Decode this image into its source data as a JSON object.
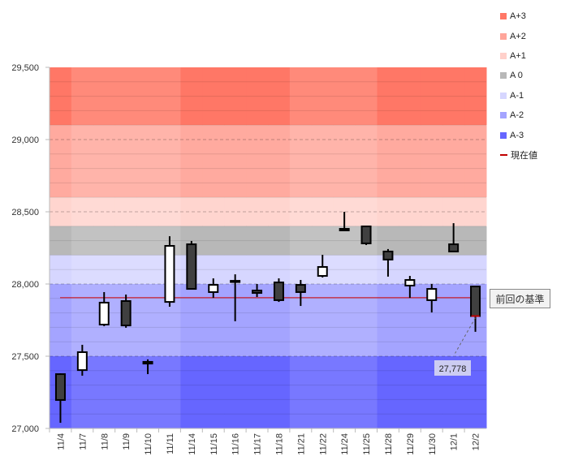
{
  "chart_data": {
    "type": "candlestick",
    "categories": [
      "11/4",
      "11/7",
      "11/8",
      "11/9",
      "11/10",
      "11/11",
      "11/14",
      "11/15",
      "11/16",
      "11/17",
      "11/18",
      "11/21",
      "11/22",
      "11/24",
      "11/25",
      "11/28",
      "11/29",
      "11/30",
      "12/1",
      "12/2"
    ],
    "ohlc": [
      [
        27376,
        27382,
        27039,
        27197
      ],
      [
        27404,
        27579,
        27365,
        27528
      ],
      [
        27719,
        27944,
        27708,
        27871
      ],
      [
        27882,
        27927,
        27697,
        27713
      ],
      [
        27461,
        27478,
        27376,
        27449
      ],
      [
        27876,
        28331,
        27843,
        28264
      ],
      [
        28275,
        28298,
        27966,
        27966
      ],
      [
        27944,
        28039,
        27904,
        27994
      ],
      [
        28022,
        28067,
        27742,
        28017
      ],
      [
        27955,
        28000,
        27910,
        27938
      ],
      [
        28011,
        28039,
        27876,
        27888
      ],
      [
        27994,
        28028,
        27848,
        27944
      ],
      [
        28056,
        28202,
        28045,
        28118
      ],
      [
        28382,
        28500,
        28371,
        28371
      ],
      [
        28399,
        28399,
        28270,
        28281
      ],
      [
        28225,
        28242,
        28051,
        28169
      ],
      [
        27989,
        28056,
        27904,
        28028
      ],
      [
        27888,
        28000,
        27803,
        27966
      ],
      [
        28275,
        28421,
        28225,
        28225
      ],
      [
        27983,
        27983,
        27669,
        27778
      ]
    ],
    "ylim": [
      27000,
      29500
    ],
    "yticks": [
      27000,
      27500,
      28000,
      28500,
      29000,
      29500
    ],
    "ytick_labels": [
      "27,000",
      "27,500",
      "28,000",
      "28,500",
      "29,000",
      "29,500"
    ],
    "bands": [
      {
        "name": "A+3",
        "from": 29100,
        "to": 29500,
        "color": "#ff7766",
        "color_alt": "#ff8a7a"
      },
      {
        "name": "A+2",
        "from": 28600,
        "to": 29100,
        "color": "#ffaa9f",
        "color_alt": "#ffb4aa"
      },
      {
        "name": "A+1",
        "from": 28400,
        "to": 28600,
        "color": "#ffd5cf",
        "color_alt": "#ffdad5"
      },
      {
        "name": "A 0",
        "from": 28200,
        "to": 28400,
        "color": "#b8b8b8",
        "color_alt": "#c2c2c2"
      },
      {
        "name": "A-1",
        "from": 28000,
        "to": 28200,
        "color": "#d6d6ff",
        "color_alt": "#dcdcff"
      },
      {
        "name": "A-2",
        "from": 27500,
        "to": 28000,
        "color": "#a4a4ff",
        "color_alt": "#b0b0ff"
      },
      {
        "name": "A-3",
        "from": 27000,
        "to": 27500,
        "color": "#6666ff",
        "color_alt": "#7878ff"
      }
    ],
    "week_alt_columns": [
      1,
      2,
      3,
      4,
      5,
      11,
      12,
      13,
      14
    ],
    "reference_line": {
      "label": "前回の基準",
      "value": 27905,
      "color": "#d00000"
    },
    "current_value": {
      "label": "27,778",
      "value": 27778
    },
    "legend": [
      {
        "label": "A+3",
        "color": "#ff7766"
      },
      {
        "label": "A+2",
        "color": "#ffa59a"
      },
      {
        "label": "A+1",
        "color": "#ffd0ca"
      },
      {
        "label": "A 0",
        "color": "#b8b8b8"
      },
      {
        "label": "A-1",
        "color": "#d6d6ff"
      },
      {
        "label": "A-2",
        "color": "#a4a4ff"
      },
      {
        "label": "A-3",
        "color": "#6666ff"
      },
      {
        "label": "現在値",
        "color": "#c00000",
        "line": true
      }
    ]
  }
}
